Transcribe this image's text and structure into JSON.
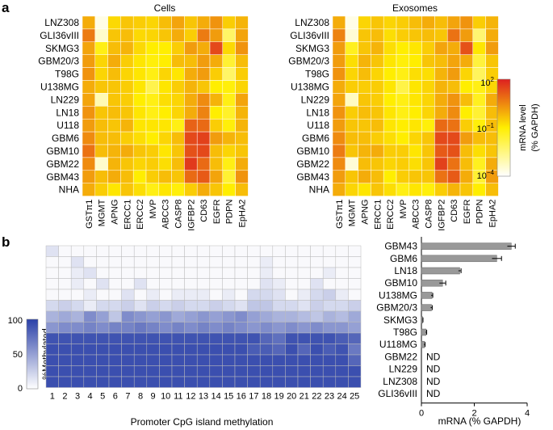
{
  "colors": {
    "heat_low": "#ffffff",
    "heat_mid": "#ffee00",
    "heat_high": "#dd2020",
    "meth_low": "#ffffff",
    "meth_high": "#2a40a8",
    "bar": "#999999",
    "grid": "#ffffff",
    "meth_grid": "#bbbbbb"
  },
  "chart_data": [
    {
      "type": "heatmap",
      "panel": "a",
      "title": "Cells",
      "rows": [
        "LNZ308",
        "GLI36vIII",
        "SKMG3",
        "GBM20/3",
        "T98G",
        "U138MG",
        "LN229",
        "LN18",
        "U118",
        "GBM6",
        "GBM10",
        "GBM22",
        "GBM43",
        "NHA"
      ],
      "cols": [
        "GSTπ1",
        "MGMT",
        "APNG",
        "ERCC1",
        "ERCC2",
        "MVP",
        "ABCC3",
        "CASP8",
        "IGFBP2",
        "CD63",
        "EGFR",
        "PDPN",
        "EpHA2"
      ],
      "values": [
        [
          0.66,
          0.05,
          0.55,
          0.6,
          0.58,
          0.56,
          0.62,
          0.68,
          0.6,
          0.66,
          0.72,
          0.58,
          0.64
        ],
        [
          0.78,
          0.1,
          0.6,
          0.62,
          0.55,
          0.56,
          0.6,
          0.66,
          0.58,
          0.78,
          0.7,
          0.3,
          0.68
        ],
        [
          0.68,
          0.46,
          0.62,
          0.64,
          0.55,
          0.5,
          0.5,
          0.58,
          0.7,
          0.66,
          0.9,
          0.55,
          0.72
        ],
        [
          0.7,
          0.56,
          0.66,
          0.58,
          0.52,
          0.48,
          0.5,
          0.62,
          0.62,
          0.7,
          0.66,
          0.4,
          0.62
        ],
        [
          0.72,
          0.56,
          0.62,
          0.56,
          0.52,
          0.46,
          0.56,
          0.52,
          0.66,
          0.7,
          0.58,
          0.3,
          0.58
        ],
        [
          0.66,
          0.6,
          0.6,
          0.58,
          0.52,
          0.35,
          0.52,
          0.58,
          0.64,
          0.6,
          0.5,
          0.48,
          0.56
        ],
        [
          0.68,
          0.15,
          0.6,
          0.58,
          0.5,
          0.46,
          0.54,
          0.56,
          0.66,
          0.74,
          0.64,
          0.46,
          0.68
        ],
        [
          0.72,
          0.6,
          0.62,
          0.6,
          0.52,
          0.46,
          0.5,
          0.56,
          0.66,
          0.76,
          0.5,
          0.42,
          0.64
        ],
        [
          0.7,
          0.62,
          0.6,
          0.64,
          0.52,
          0.52,
          0.52,
          0.46,
          0.84,
          0.82,
          0.58,
          0.48,
          0.64
        ],
        [
          0.74,
          0.62,
          0.62,
          0.58,
          0.54,
          0.5,
          0.56,
          0.62,
          0.9,
          0.92,
          0.7,
          0.64,
          0.62
        ],
        [
          0.8,
          0.62,
          0.64,
          0.66,
          0.6,
          0.58,
          0.52,
          0.6,
          0.88,
          0.9,
          0.62,
          0.56,
          0.6
        ],
        [
          0.74,
          0.1,
          0.64,
          0.6,
          0.56,
          0.58,
          0.54,
          0.62,
          0.94,
          0.82,
          0.62,
          0.46,
          0.66
        ],
        [
          0.7,
          0.62,
          0.66,
          0.62,
          0.5,
          0.58,
          0.62,
          0.6,
          0.82,
          0.86,
          0.68,
          0.4,
          0.72
        ],
        [
          0.66,
          0.58,
          0.52,
          0.6,
          0.54,
          0.46,
          0.52,
          0.48,
          0.58,
          0.66,
          0.6,
          0.5,
          0.62
        ]
      ]
    },
    {
      "type": "heatmap",
      "panel": "a",
      "title": "Exosomes",
      "rows": [
        "LNZ308",
        "GLI36vIII",
        "SKMG3",
        "GBM20/3",
        "T98G",
        "U138MG",
        "LN229",
        "LN18",
        "U118",
        "GBM6",
        "GBM10",
        "GBM22",
        "GBM43",
        "NHA"
      ],
      "cols": [
        "GSTπ1",
        "MGMT",
        "APNG",
        "ERCC1",
        "ERCC2",
        "MVP",
        "ABCC3",
        "CASP8",
        "IGFBP2",
        "CD63",
        "EGFR",
        "PDPN",
        "EpHA2"
      ],
      "values": [
        [
          0.66,
          0.05,
          0.56,
          0.6,
          0.56,
          0.58,
          0.62,
          0.66,
          0.62,
          0.68,
          0.72,
          0.58,
          0.64
        ],
        [
          0.76,
          0.08,
          0.6,
          0.62,
          0.54,
          0.58,
          0.6,
          0.62,
          0.6,
          0.8,
          0.7,
          0.28,
          0.66
        ],
        [
          0.7,
          0.44,
          0.6,
          0.64,
          0.54,
          0.5,
          0.52,
          0.58,
          0.68,
          0.66,
          0.88,
          0.52,
          0.7
        ],
        [
          0.7,
          0.54,
          0.64,
          0.6,
          0.52,
          0.48,
          0.5,
          0.6,
          0.62,
          0.68,
          0.66,
          0.38,
          0.6
        ],
        [
          0.72,
          0.56,
          0.62,
          0.56,
          0.5,
          0.46,
          0.54,
          0.54,
          0.64,
          0.7,
          0.56,
          0.32,
          0.58
        ],
        [
          0.66,
          0.58,
          0.58,
          0.58,
          0.52,
          0.36,
          0.52,
          0.56,
          0.64,
          0.62,
          0.5,
          0.46,
          0.56
        ],
        [
          0.68,
          0.12,
          0.6,
          0.58,
          0.5,
          0.46,
          0.52,
          0.56,
          0.66,
          0.72,
          0.62,
          0.44,
          0.66
        ],
        [
          0.72,
          0.58,
          0.62,
          0.6,
          0.52,
          0.46,
          0.5,
          0.56,
          0.66,
          0.74,
          0.5,
          0.4,
          0.62
        ],
        [
          0.7,
          0.6,
          0.6,
          0.62,
          0.52,
          0.5,
          0.52,
          0.48,
          0.82,
          0.8,
          0.58,
          0.48,
          0.62
        ],
        [
          0.74,
          0.62,
          0.62,
          0.58,
          0.54,
          0.5,
          0.56,
          0.6,
          0.9,
          0.9,
          0.7,
          0.62,
          0.62
        ],
        [
          0.78,
          0.6,
          0.64,
          0.66,
          0.58,
          0.58,
          0.52,
          0.6,
          0.86,
          0.88,
          0.62,
          0.54,
          0.6
        ],
        [
          0.74,
          0.08,
          0.62,
          0.6,
          0.56,
          0.58,
          0.54,
          0.6,
          0.92,
          0.8,
          0.62,
          0.44,
          0.66
        ],
        [
          0.7,
          0.6,
          0.66,
          0.62,
          0.5,
          0.58,
          0.6,
          0.6,
          0.8,
          0.86,
          0.66,
          0.4,
          0.7
        ],
        [
          0.66,
          0.56,
          0.52,
          0.6,
          0.54,
          0.46,
          0.52,
          0.48,
          0.58,
          0.64,
          0.6,
          0.5,
          0.62
        ]
      ]
    },
    {
      "type": "colorbar",
      "panel": "a",
      "label_line1": "mRNA level",
      "label_line2": "(% GAPDH)",
      "ticks": [
        {
          "base": "10",
          "exp": "2"
        },
        {
          "base": "10",
          "exp": "−1"
        },
        {
          "base": "10",
          "exp": "−4"
        }
      ]
    },
    {
      "type": "heatmap",
      "panel": "b",
      "xlabel": "Promoter CpG island methylation",
      "ylabel": "%Methylated",
      "colorbar_ticks": [
        "100",
        "50",
        "0"
      ],
      "cols": [
        "1",
        "2",
        "3",
        "4",
        "5",
        "6",
        "7",
        "8",
        "9",
        "10",
        "11",
        "12",
        "13",
        "14",
        "15",
        "16",
        "17",
        "18",
        "19",
        "20",
        "21",
        "22",
        "23",
        "24",
        "25"
      ],
      "values": [
        [
          15,
          3,
          3,
          3,
          3,
          3,
          3,
          3,
          3,
          3,
          3,
          3,
          3,
          3,
          3,
          3,
          3,
          3,
          3,
          3,
          3,
          3,
          3,
          3,
          3
        ],
        [
          3,
          3,
          15,
          3,
          3,
          3,
          3,
          3,
          3,
          3,
          3,
          3,
          3,
          3,
          3,
          3,
          3,
          10,
          3,
          3,
          3,
          3,
          3,
          3,
          3
        ],
        [
          3,
          3,
          10,
          15,
          3,
          3,
          3,
          3,
          3,
          3,
          3,
          3,
          3,
          3,
          3,
          3,
          3,
          10,
          3,
          3,
          3,
          3,
          10,
          3,
          3
        ],
        [
          3,
          3,
          10,
          3,
          15,
          3,
          3,
          15,
          3,
          3,
          3,
          3,
          3,
          3,
          3,
          3,
          3,
          15,
          10,
          3,
          3,
          15,
          3,
          3,
          3
        ],
        [
          3,
          3,
          3,
          10,
          3,
          3,
          15,
          3,
          10,
          3,
          10,
          10,
          10,
          3,
          10,
          3,
          20,
          20,
          15,
          3,
          10,
          20,
          25,
          10,
          3
        ],
        [
          20,
          25,
          20,
          10,
          20,
          20,
          25,
          15,
          25,
          20,
          25,
          20,
          20,
          25,
          20,
          15,
          30,
          30,
          20,
          20,
          15,
          25,
          20,
          20,
          25
        ],
        [
          40,
          45,
          40,
          60,
          50,
          30,
          60,
          55,
          50,
          55,
          45,
          50,
          55,
          50,
          55,
          60,
          50,
          45,
          40,
          40,
          35,
          30,
          40,
          35,
          45
        ],
        [
          55,
          60,
          60,
          65,
          60,
          65,
          65,
          70,
          65,
          60,
          65,
          60,
          65,
          60,
          65,
          60,
          55,
          60,
          55,
          60,
          55,
          60,
          55,
          55,
          50
        ],
        [
          90,
          90,
          90,
          90,
          90,
          90,
          90,
          90,
          90,
          90,
          90,
          90,
          90,
          90,
          90,
          90,
          90,
          80,
          75,
          90,
          90,
          90,
          90,
          85,
          80
        ],
        [
          92,
          92,
          92,
          92,
          92,
          92,
          92,
          92,
          92,
          92,
          92,
          92,
          92,
          92,
          92,
          92,
          85,
          85,
          80,
          92,
          80,
          92,
          85,
          90,
          70
        ],
        [
          92,
          92,
          92,
          92,
          92,
          92,
          92,
          92,
          92,
          92,
          92,
          92,
          92,
          92,
          92,
          92,
          92,
          92,
          92,
          92,
          92,
          92,
          92,
          92,
          80
        ],
        [
          92,
          92,
          92,
          92,
          92,
          92,
          92,
          92,
          92,
          92,
          92,
          92,
          92,
          92,
          92,
          92,
          92,
          92,
          92,
          92,
          92,
          92,
          92,
          92,
          92
        ],
        [
          92,
          92,
          92,
          92,
          92,
          92,
          92,
          92,
          92,
          92,
          92,
          92,
          92,
          92,
          92,
          92,
          92,
          92,
          92,
          92,
          92,
          92,
          92,
          92,
          92
        ]
      ]
    },
    {
      "type": "bar",
      "panel": "b",
      "orientation": "horizontal",
      "xlabel": "mRNA (% GAPDH)",
      "xlim": [
        0,
        4
      ],
      "xticks": [
        "0",
        "2",
        "4"
      ],
      "categories": [
        "GBM43",
        "GBM6",
        "LN18",
        "GBM10",
        "U138MG",
        "GBM20/3",
        "SKMG3",
        "T98G",
        "U118MG",
        "GBM22",
        "LN229",
        "LNZ308",
        "GLI36vIII"
      ],
      "values": [
        3.4,
        2.85,
        1.45,
        0.8,
        0.4,
        0.38,
        0.05,
        0.18,
        0.12,
        null,
        null,
        null,
        null
      ],
      "errors": [
        0.15,
        0.18,
        0.05,
        0.12,
        0.03,
        0.03,
        0.01,
        0.02,
        0.02,
        null,
        null,
        null,
        null
      ],
      "nd_label": "ND"
    }
  ],
  "panel_labels": {
    "a": "a",
    "b": "b"
  }
}
